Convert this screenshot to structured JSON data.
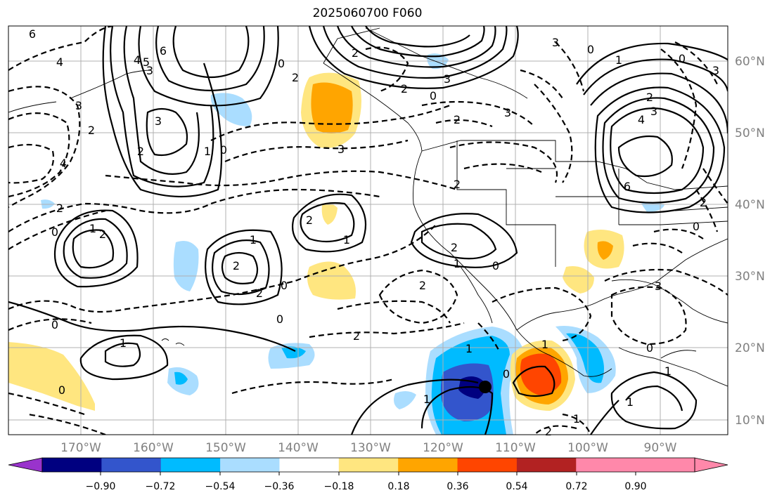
{
  "title": "2025060700 F060",
  "map": {
    "lon_labels": [
      "170°W",
      "160°W",
      "150°W",
      "140°W",
      "130°W",
      "120°W",
      "110°W",
      "100°W",
      "90°W"
    ],
    "lat_labels": [
      "60°N",
      "50°N",
      "40°N",
      "30°N",
      "20°N",
      "10°N"
    ],
    "contour_labels": [
      "6",
      "4",
      "3",
      "2",
      "1",
      "0",
      "5",
      "6",
      "-4",
      "-3",
      "-2",
      "-1",
      "0",
      "-2",
      "-3",
      "-4",
      "-2",
      "-6",
      "-3",
      "-2",
      "-2",
      "-3",
      "-2",
      "-1",
      "0",
      "-1",
      "-2",
      "-4",
      "-3",
      "-2",
      "-1",
      "-2",
      "-1",
      "-2",
      "-2",
      "-2",
      "-3"
    ],
    "marker": "storm-center-dot"
  },
  "colorbar": {
    "tick_labels": [
      "−0.90",
      "−0.72",
      "−0.54",
      "−0.36",
      "−0.18",
      "0.18",
      "0.36",
      "0.54",
      "0.72",
      "0.90"
    ],
    "colors": [
      "#9933cc",
      "#000080",
      "#3355cc",
      "#00bbff",
      "#aaddff",
      "#ffffff",
      "#ffe680",
      "#ffa500",
      "#ff4500",
      "#b22222",
      "#ff88aa",
      "#ff88aa"
    ]
  }
}
